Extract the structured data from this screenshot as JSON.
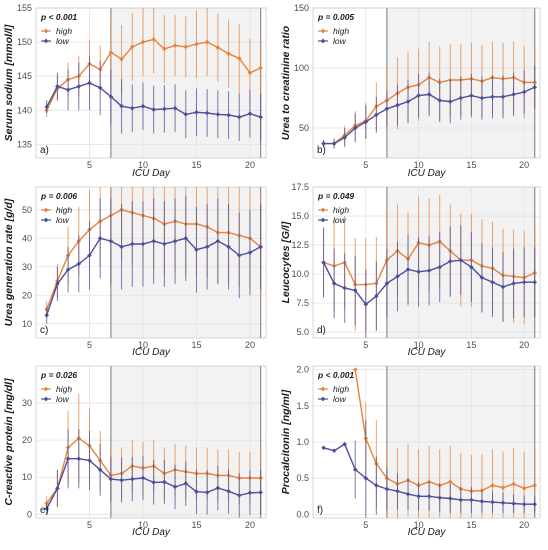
{
  "colors": {
    "high": "#E8833A",
    "low": "#4E4F9A",
    "grid": "#e3e3e3",
    "shade": "#f2f2f2",
    "vline": "#8c8c8c"
  },
  "legend": {
    "high": "high",
    "low": "low"
  },
  "chart_data": [
    {
      "type": "line",
      "panel": "a)",
      "ylabel": "Serum sodium [mmol/l]",
      "xlabel": "ICU Day",
      "p_value": "p < 0.001",
      "ylim": [
        133,
        155
      ],
      "yticks": [
        135,
        140,
        145,
        150,
        155
      ],
      "xlim": [
        0,
        21.5
      ],
      "xticks": [
        5,
        10,
        15,
        20
      ],
      "shaded": [
        7,
        21
      ],
      "vlines": [
        7,
        21
      ],
      "x": [
        1,
        2,
        3,
        4,
        5,
        6,
        7,
        8,
        9,
        10,
        11,
        12,
        13,
        14,
        15,
        16,
        17,
        18,
        19,
        20,
        21
      ],
      "series": [
        {
          "name": "high",
          "values": [
            140.0,
            143.2,
            144.5,
            145.0,
            146.8,
            146.0,
            148.5,
            147.5,
            149.3,
            150.0,
            150.4,
            149.0,
            149.5,
            149.3,
            149.7,
            150.0,
            149.2,
            148.3,
            147.6,
            145.5,
            146.2
          ],
          "err": [
            1.0,
            1.8,
            2.5,
            3.0,
            3.5,
            3.5,
            4.5,
            5.0,
            5.0,
            5.0,
            5.0,
            5.0,
            4.5,
            4.5,
            5.0,
            5.0,
            5.0,
            5.0,
            5.0,
            5.0,
            4.0
          ]
        },
        {
          "name": "low",
          "values": [
            140.5,
            143.5,
            143.0,
            143.5,
            144.0,
            143.3,
            142.0,
            140.6,
            140.3,
            140.6,
            140.1,
            140.2,
            140.3,
            139.4,
            139.7,
            139.6,
            139.4,
            139.3,
            139.0,
            139.5,
            139.0
          ],
          "err": [
            1.0,
            2.0,
            3.0,
            3.5,
            4.0,
            4.0,
            4.0,
            4.0,
            3.5,
            3.5,
            3.5,
            3.5,
            3.5,
            3.5,
            3.5,
            3.5,
            3.5,
            3.5,
            3.5,
            3.5,
            3.5
          ]
        }
      ]
    },
    {
      "type": "line",
      "panel": "b)",
      "ylabel": "Urea to creatinine ratio",
      "xlabel": "ICU Day",
      "p_value": "p = 0.005",
      "ylim": [
        25,
        150
      ],
      "yticks": [
        50,
        100,
        150
      ],
      "xlim": [
        0,
        21.5
      ],
      "xticks": [
        5,
        10,
        15,
        20
      ],
      "shaded": [
        7,
        21
      ],
      "vlines": [
        7,
        21
      ],
      "x": [
        1,
        2,
        3,
        4,
        5,
        6,
        7,
        8,
        9,
        10,
        11,
        12,
        13,
        14,
        15,
        16,
        17,
        18,
        19,
        20,
        21
      ],
      "series": [
        {
          "name": "high",
          "values": [
            37,
            37,
            44,
            52,
            56,
            68,
            73,
            79,
            84,
            86,
            92,
            88,
            90,
            90,
            91,
            89,
            92,
            91,
            92,
            88,
            88
          ],
          "err": [
            3,
            4,
            8,
            12,
            15,
            20,
            25,
            30,
            30,
            30,
            30,
            30,
            30,
            30,
            30,
            30,
            30,
            30,
            30,
            30,
            30
          ]
        },
        {
          "name": "low",
          "values": [
            37,
            37,
            42,
            50,
            55,
            61,
            66,
            69,
            72,
            77,
            78,
            73,
            72,
            75,
            77,
            75,
            76,
            76,
            78,
            80,
            84
          ],
          "err": [
            3,
            4,
            8,
            12,
            14,
            15,
            15,
            17,
            18,
            18,
            18,
            18,
            18,
            18,
            18,
            18,
            18,
            18,
            18,
            18,
            18
          ]
        }
      ]
    },
    {
      "type": "line",
      "panel": "c)",
      "ylabel": "Urea generation rate [g/d]",
      "xlabel": "ICU Day",
      "p_value": "p = 0.006",
      "ylim": [
        5,
        58
      ],
      "yticks": [
        10,
        20,
        30,
        40,
        50
      ],
      "xlim": [
        0,
        21.5
      ],
      "xticks": [
        5,
        10,
        15,
        20
      ],
      "shaded": [
        7,
        21
      ],
      "vlines": [
        7,
        21
      ],
      "x": [
        1,
        2,
        3,
        4,
        5,
        6,
        7,
        8,
        9,
        10,
        11,
        12,
        13,
        14,
        15,
        16,
        17,
        18,
        19,
        20,
        21
      ],
      "series": [
        {
          "name": "high",
          "values": [
            15,
            25,
            34,
            39,
            43,
            46,
            48,
            50,
            49,
            48,
            47,
            45,
            46,
            45,
            45,
            44,
            42,
            42,
            41,
            40,
            37
          ],
          "err": [
            3,
            6,
            10,
            12,
            14,
            16,
            18,
            18,
            18,
            18,
            18,
            18,
            18,
            18,
            18,
            18,
            18,
            18,
            18,
            18,
            18
          ]
        },
        {
          "name": "low",
          "values": [
            13,
            24,
            29,
            31,
            34,
            40,
            39,
            37,
            38,
            38,
            39,
            38,
            39,
            40,
            36,
            37,
            39,
            37,
            34,
            35,
            37
          ],
          "err": [
            3,
            6,
            8,
            10,
            12,
            14,
            15,
            15,
            15,
            15,
            15,
            15,
            15,
            15,
            15,
            15,
            15,
            15,
            15,
            15,
            15
          ]
        }
      ]
    },
    {
      "type": "line",
      "panel": "d)",
      "ylabel": "Leucocytes [G/l]",
      "xlabel": "ICU Day",
      "p_value": "p = 0.049",
      "ylim": [
        4.5,
        17.5
      ],
      "yticks": [
        5.0,
        7.5,
        10.0,
        12.5,
        15.0,
        17.5
      ],
      "xlim": [
        0,
        21.5
      ],
      "xticks": [
        5,
        10,
        15,
        20
      ],
      "shaded": [
        7,
        21
      ],
      "vlines": [
        7,
        21
      ],
      "x": [
        1,
        2,
        3,
        4,
        5,
        6,
        7,
        8,
        9,
        10,
        11,
        12,
        13,
        14,
        15,
        16,
        17,
        18,
        19,
        20,
        21
      ],
      "series": [
        {
          "name": "high",
          "values": [
            11.0,
            10.7,
            11.0,
            9.1,
            9.1,
            9.2,
            11.2,
            12.0,
            11.3,
            12.7,
            12.5,
            12.8,
            12.0,
            11.2,
            11.2,
            10.7,
            10.5,
            9.9,
            9.8,
            9.7,
            10.1
          ],
          "err": [
            3,
            4,
            4,
            4,
            4,
            4,
            4,
            4,
            4,
            4,
            4,
            4,
            4,
            4,
            4,
            4,
            4,
            4,
            4,
            4,
            4
          ]
        },
        {
          "name": "low",
          "values": [
            11.0,
            9.2,
            8.8,
            8.6,
            7.4,
            8.1,
            9.2,
            9.8,
            10.4,
            10.2,
            10.3,
            10.6,
            11.1,
            11.2,
            10.6,
            9.7,
            9.3,
            8.9,
            9.2,
            9.3,
            9.3
          ],
          "err": [
            3,
            3,
            3,
            3,
            3,
            3,
            3,
            3,
            3,
            3,
            3,
            3,
            3,
            3,
            3,
            3,
            3,
            3,
            3,
            3,
            3
          ]
        }
      ]
    },
    {
      "type": "line",
      "panel": "e)",
      "ylabel": "C-reactive protein [mg/dl]",
      "xlabel": "ICU Day",
      "p_value": "p = 0.026",
      "ylim": [
        -1,
        40
      ],
      "yticks": [
        0,
        10,
        20,
        30
      ],
      "xlim": [
        0,
        21.5
      ],
      "xticks": [
        5,
        10,
        15,
        20
      ],
      "shaded": [
        7,
        21
      ],
      "vlines": [
        7,
        21
      ],
      "x": [
        1,
        2,
        3,
        4,
        5,
        6,
        7,
        8,
        9,
        10,
        11,
        12,
        13,
        14,
        15,
        16,
        17,
        18,
        19,
        20,
        21
      ],
      "series": [
        {
          "name": "high",
          "values": [
            3,
            7,
            18,
            20.5,
            18.5,
            14.5,
            10.5,
            11,
            13,
            12.5,
            13,
            11,
            12,
            11.5,
            11,
            11,
            10.5,
            10.5,
            9.8,
            9.8,
            9.8
          ],
          "err": [
            2,
            5,
            10,
            12,
            10,
            8,
            7,
            7,
            7,
            7,
            7,
            7,
            7,
            7,
            7,
            7,
            7,
            7,
            7,
            7,
            7
          ]
        },
        {
          "name": "low",
          "values": [
            1.5,
            7,
            15,
            15,
            14.5,
            12,
            9.5,
            9.2,
            9.5,
            9.8,
            8.6,
            8.7,
            7.4,
            8.3,
            6.1,
            5.9,
            7.1,
            6.2,
            5.1,
            5.8,
            5.9
          ],
          "err": [
            1.5,
            5,
            8,
            8,
            8,
            7,
            6,
            6,
            6,
            6,
            6,
            6,
            6,
            6,
            6,
            6,
            6,
            6,
            6,
            6,
            6
          ]
        }
      ]
    },
    {
      "type": "line",
      "panel": "f)",
      "ylabel": "Procalcitonin [ng/ml]",
      "xlabel": "ICU Day",
      "p_value": "p < 0.001",
      "ylim": [
        -0.05,
        2.05
      ],
      "yticks": [
        0.0,
        0.5,
        1.0,
        1.5,
        2.0
      ],
      "xlim": [
        0,
        21.5
      ],
      "xticks": [
        5,
        10,
        15,
        20
      ],
      "shaded": [
        7,
        21
      ],
      "vlines": [
        7,
        21
      ],
      "x": [
        4,
        5,
        6,
        7,
        8,
        9,
        10,
        11,
        12,
        13,
        14,
        15,
        16,
        17,
        18,
        19,
        20,
        21
      ],
      "series": [
        {
          "name": "high",
          "values": [
            2.0,
            1.05,
            0.7,
            0.5,
            0.42,
            0.47,
            0.4,
            0.45,
            0.4,
            0.45,
            0.35,
            0.32,
            0.33,
            0.4,
            0.37,
            0.42,
            0.36,
            0.4
          ],
          "err": [
            0,
            0.5,
            0.6,
            0.5,
            0.5,
            0.5,
            0.5,
            0.5,
            0.5,
            0.5,
            0.5,
            0.5,
            0.5,
            0.5,
            0.5,
            0.5,
            0.5,
            0.5
          ]
        },
        {
          "name": "low",
          "x": [
            1,
            2,
            3,
            4,
            5,
            6,
            7,
            8,
            9,
            10,
            11,
            12,
            13,
            14,
            15,
            16,
            17,
            18,
            19,
            20,
            21
          ],
          "values": [
            0.92,
            0.88,
            0.97,
            0.62,
            0.5,
            0.4,
            0.35,
            0.32,
            0.28,
            0.25,
            0.25,
            0.23,
            0.22,
            0.2,
            0.2,
            0.18,
            0.17,
            0.16,
            0.15,
            0.14,
            0.14
          ],
          "err": [
            0,
            0,
            0,
            0.4,
            0.8,
            0.4,
            0.3,
            0.25,
            0.22,
            0.2,
            0.2,
            0.2,
            0.2,
            0.18,
            0.18,
            0.16,
            0.15,
            0.14,
            0.13,
            0.12,
            0.12
          ]
        }
      ]
    }
  ]
}
